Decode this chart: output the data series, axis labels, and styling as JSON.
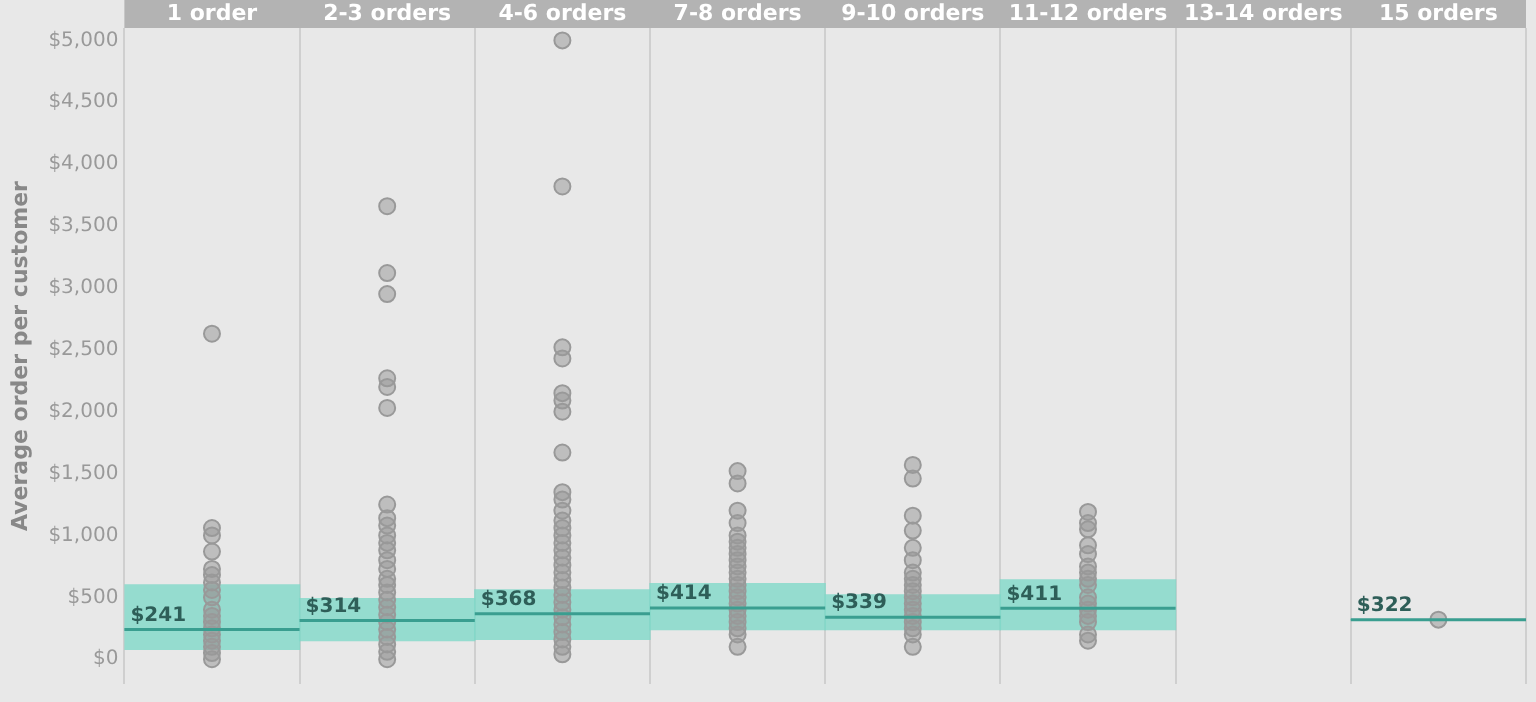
{
  "chart_data": {
    "type": "scatter",
    "ylabel": "Average order per customer",
    "categories": [
      "1 order",
      "2-3 orders",
      "4-6 orders",
      "7-8 orders",
      "9-10 orders",
      "11-12 orders",
      "13-14 orders",
      "15 orders"
    ],
    "ylim": [
      -200,
      5100
    ],
    "yticks": [
      {
        "value": 0,
        "label": "$0"
      },
      {
        "value": 500,
        "label": "$500"
      },
      {
        "value": 1000,
        "label": "$1,000"
      },
      {
        "value": 1500,
        "label": "$1,500"
      },
      {
        "value": 2000,
        "label": "$2,000"
      },
      {
        "value": 2500,
        "label": "$2,500"
      },
      {
        "value": 3000,
        "label": "$3,000"
      },
      {
        "value": 3500,
        "label": "$3,500"
      },
      {
        "value": 4000,
        "label": "$4,000"
      },
      {
        "value": 4500,
        "label": "$4,500"
      },
      {
        "value": 5000,
        "label": "$5,000"
      }
    ],
    "grid": "x",
    "series": [
      {
        "type": "bar",
        "color": "#7fd8c8",
        "base": [
          80,
          150,
          160,
          240,
          240,
          240,
          null,
          320
        ],
        "values": [
          520,
          340,
          400,
          370,
          280,
          400,
          null,
          0
        ]
      },
      {
        "color": "#999999",
        "marker": "circle",
        "x": [
          "1 order",
          "1 order",
          "1 order",
          "1 order",
          "1 order",
          "1 order",
          "1 order",
          "1 order",
          "1 order",
          "1 order",
          "1 order",
          "1 order",
          "1 order",
          "1 order",
          "1 order",
          "1 order",
          "1 order",
          "1 order",
          "2-3 orders",
          "2-3 orders",
          "2-3 orders",
          "2-3 orders",
          "2-3 orders",
          "2-3 orders",
          "2-3 orders",
          "2-3 orders",
          "2-3 orders",
          "2-3 orders",
          "2-3 orders",
          "2-3 orders",
          "2-3 orders",
          "2-3 orders",
          "2-3 orders",
          "2-3 orders",
          "2-3 orders",
          "2-3 orders",
          "2-3 orders",
          "2-3 orders",
          "2-3 orders",
          "2-3 orders",
          "2-3 orders",
          "2-3 orders",
          "2-3 orders",
          "2-3 orders",
          "4-6 orders",
          "4-6 orders",
          "4-6 orders",
          "4-6 orders",
          "4-6 orders",
          "4-6 orders",
          "4-6 orders",
          "4-6 orders",
          "4-6 orders",
          "4-6 orders",
          "4-6 orders",
          "4-6 orders",
          "4-6 orders",
          "4-6 orders",
          "4-6 orders",
          "4-6 orders",
          "4-6 orders",
          "4-6 orders",
          "4-6 orders",
          "4-6 orders",
          "4-6 orders",
          "4-6 orders",
          "4-6 orders",
          "4-6 orders",
          "4-6 orders",
          "4-6 orders",
          "4-6 orders",
          "4-6 orders",
          "4-6 orders",
          "4-6 orders",
          "7-8 orders",
          "7-8 orders",
          "7-8 orders",
          "7-8 orders",
          "7-8 orders",
          "7-8 orders",
          "7-8 orders",
          "7-8 orders",
          "7-8 orders",
          "7-8 orders",
          "7-8 orders",
          "7-8 orders",
          "7-8 orders",
          "7-8 orders",
          "7-8 orders",
          "7-8 orders",
          "7-8 orders",
          "7-8 orders",
          "7-8 orders",
          "7-8 orders",
          "7-8 orders",
          "7-8 orders",
          "9-10 orders",
          "9-10 orders",
          "9-10 orders",
          "9-10 orders",
          "9-10 orders",
          "9-10 orders",
          "9-10 orders",
          "9-10 orders",
          "9-10 orders",
          "9-10 orders",
          "9-10 orders",
          "9-10 orders",
          "9-10 orders",
          "9-10 orders",
          "9-10 orders",
          "9-10 orders",
          "9-10 orders",
          "9-10 orders",
          "11-12 orders",
          "11-12 orders",
          "11-12 orders",
          "11-12 orders",
          "11-12 orders",
          "11-12 orders",
          "11-12 orders",
          "11-12 orders",
          "11-12 orders",
          "11-12 orders",
          "11-12 orders",
          "11-12 orders",
          "11-12 orders",
          "11-12 orders",
          "11-12 orders",
          "11-12 orders",
          "15 orders"
        ],
        "values": [
          2630,
          1060,
          1000,
          870,
          730,
          680,
          620,
          560,
          500,
          400,
          350,
          300,
          250,
          200,
          150,
          100,
          50,
          0,
          3660,
          3120,
          2950,
          2270,
          2200,
          2030,
          1250,
          1140,
          1080,
          1000,
          940,
          880,
          800,
          730,
          650,
          600,
          540,
          480,
          420,
          360,
          300,
          240,
          180,
          120,
          60,
          0,
          5000,
          3820,
          2520,
          2430,
          2150,
          2090,
          2000,
          1670,
          1350,
          1290,
          1200,
          1120,
          1060,
          1000,
          940,
          880,
          820,
          760,
          700,
          640,
          580,
          520,
          460,
          400,
          340,
          280,
          220,
          160,
          100,
          40,
          1520,
          1420,
          1200,
          1100,
          1000,
          950,
          900,
          850,
          800,
          750,
          700,
          650,
          600,
          550,
          500,
          450,
          400,
          350,
          300,
          250,
          200,
          100,
          1570,
          1460,
          1160,
          1040,
          900,
          800,
          700,
          650,
          600,
          550,
          500,
          450,
          400,
          350,
          300,
          250,
          200,
          100,
          1190,
          1100,
          1050,
          920,
          850,
          750,
          700,
          650,
          600,
          500,
          450,
          400,
          350,
          300,
          200,
          150,
          320
        ]
      }
    ],
    "annotations": [
      {
        "text": "$241",
        "x": "1 order",
        "y": 241
      },
      {
        "text": "$314",
        "x": "2-3 orders",
        "y": 314
      },
      {
        "text": "$368",
        "x": "4-6 orders",
        "y": 368
      },
      {
        "text": "$414",
        "x": "7-8 orders",
        "y": 414
      },
      {
        "text": "$339",
        "x": "9-10 orders",
        "y": 339
      },
      {
        "text": "$411",
        "x": "11-12 orders",
        "y": 411
      },
      {
        "text": "$322",
        "x": "15 orders",
        "y": 320
      }
    ]
  }
}
